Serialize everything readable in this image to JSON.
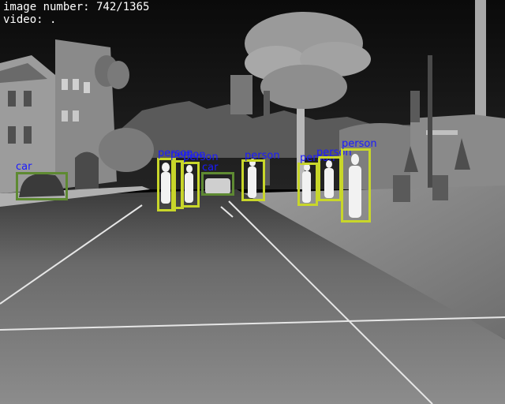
{
  "hud": {
    "image_number_label": "image number: 742/1365",
    "video_label": "video: ."
  },
  "colors": {
    "person_box": "#c8d62a",
    "car_box": "#5e8a32",
    "label_text": "#1a1aff"
  },
  "detections": [
    {
      "label": "car"
    },
    {
      "label": "person"
    },
    {
      "label": "person"
    },
    {
      "label": "person"
    },
    {
      "label": "car"
    },
    {
      "label": "person"
    },
    {
      "label": "person"
    },
    {
      "label": "person"
    },
    {
      "label": "person"
    }
  ]
}
